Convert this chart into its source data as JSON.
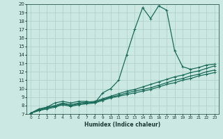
{
  "bg_color": "#cce8e2",
  "grid_color": "#aacfc8",
  "line_color": "#1a6b5a",
  "xlabel": "Humidex (Indice chaleur)",
  "xlim": [
    -0.5,
    23.5
  ],
  "ylim": [
    7,
    20
  ],
  "xticks": [
    0,
    1,
    2,
    3,
    4,
    5,
    6,
    7,
    8,
    9,
    10,
    11,
    12,
    13,
    14,
    15,
    16,
    17,
    18,
    19,
    20,
    21,
    22,
    23
  ],
  "yticks": [
    7,
    8,
    9,
    10,
    11,
    12,
    13,
    14,
    15,
    16,
    17,
    18,
    19,
    20
  ],
  "series": [
    {
      "x": [
        0,
        1,
        2,
        3,
        4,
        5,
        6,
        7,
        8,
        9,
        10,
        11,
        12,
        13,
        14,
        15,
        16,
        17,
        18,
        19,
        20,
        21,
        22,
        23
      ],
      "y": [
        7.1,
        7.6,
        7.8,
        8.3,
        8.5,
        8.3,
        8.5,
        8.5,
        8.3,
        9.5,
        10.0,
        11.0,
        14.0,
        17.0,
        19.6,
        18.3,
        19.8,
        19.3,
        14.5,
        12.6,
        12.3,
        12.5,
        12.8,
        12.9
      ]
    },
    {
      "x": [
        0,
        1,
        2,
        3,
        4,
        5,
        6,
        7,
        8,
        9,
        10,
        11,
        12,
        13,
        14,
        15,
        16,
        17,
        18,
        19,
        20,
        21,
        22,
        23
      ],
      "y": [
        7.1,
        7.5,
        7.8,
        8.0,
        8.3,
        8.1,
        8.3,
        8.4,
        8.5,
        8.8,
        9.1,
        9.4,
        9.7,
        9.9,
        10.2,
        10.5,
        10.8,
        11.1,
        11.4,
        11.6,
        11.9,
        12.1,
        12.4,
        12.7
      ]
    },
    {
      "x": [
        0,
        1,
        2,
        3,
        4,
        5,
        6,
        7,
        8,
        9,
        10,
        11,
        12,
        13,
        14,
        15,
        16,
        17,
        18,
        19,
        20,
        21,
        22,
        23
      ],
      "y": [
        7.1,
        7.4,
        7.7,
        7.9,
        8.2,
        8.0,
        8.2,
        8.3,
        8.4,
        8.7,
        9.0,
        9.2,
        9.5,
        9.7,
        9.9,
        10.1,
        10.4,
        10.7,
        11.0,
        11.2,
        11.5,
        11.7,
        12.0,
        12.2
      ]
    },
    {
      "x": [
        0,
        1,
        2,
        3,
        4,
        5,
        6,
        7,
        8,
        9,
        10,
        11,
        12,
        13,
        14,
        15,
        16,
        17,
        18,
        19,
        20,
        21,
        22,
        23
      ],
      "y": [
        7.1,
        7.4,
        7.6,
        7.8,
        8.1,
        7.9,
        8.1,
        8.2,
        8.3,
        8.6,
        8.9,
        9.1,
        9.3,
        9.5,
        9.7,
        9.9,
        10.2,
        10.5,
        10.7,
        11.0,
        11.2,
        11.5,
        11.7,
        11.9
      ]
    }
  ]
}
